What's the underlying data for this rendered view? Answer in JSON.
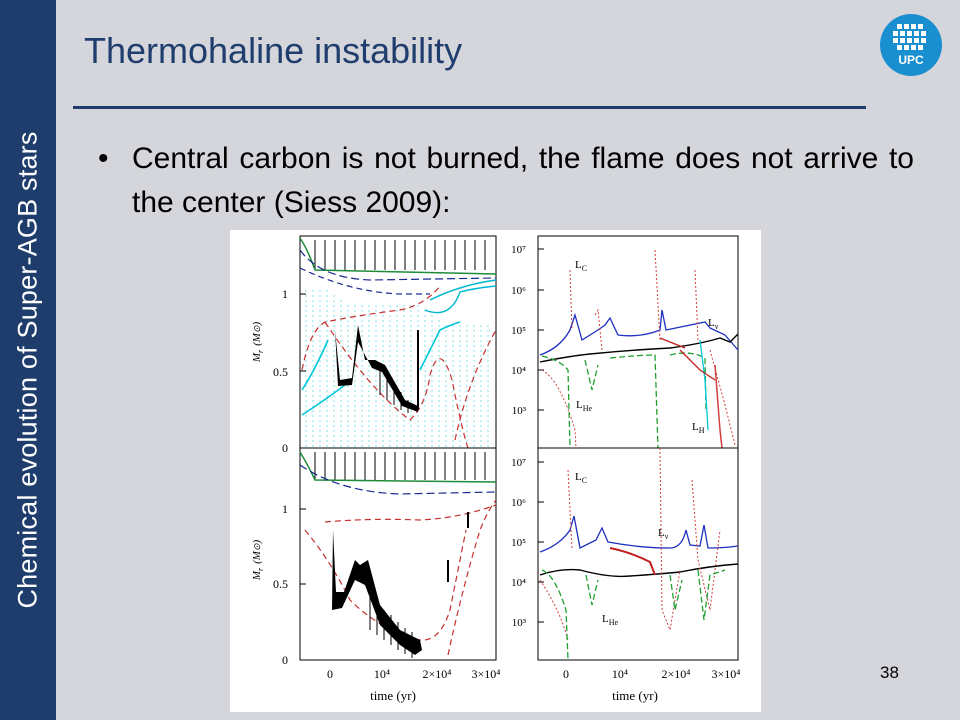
{
  "slide": {
    "sidebar_text": "Chemical evolution of Super-AGB stars",
    "title": "Thermohaline instability",
    "bullet": "Central carbon is not burned, the flame does not arrive to the center (Siess 2009):",
    "page_number": "38",
    "logo": {
      "text": "UPC",
      "icon": "upc-logo-icon"
    },
    "colors": {
      "sidebar": "#1e3d6c",
      "title": "#1f3d6d",
      "background": "#d4d6dc"
    }
  },
  "figure": {
    "left_panels": {
      "ylabel_main": "M",
      "ylabel_sub": "r",
      "ylabel_unit": "(M",
      "ylabel_unit_end": ")",
      "yticks": [
        "0",
        "0.5",
        "1"
      ],
      "xticks": [
        "0",
        "10⁴",
        "2×10⁴",
        "3×10⁴"
      ],
      "xlabel": "time (yr)"
    },
    "right_panels": {
      "yticks": [
        "10³",
        "10⁴",
        "10⁵",
        "10⁶",
        "10⁷"
      ],
      "xticks": [
        "0",
        "10⁴",
        "2×10⁴",
        "3×10⁴"
      ],
      "xlabel": "time (yr)",
      "top_labels": {
        "lc": "C",
        "lnu": "ν",
        "lhe": "He",
        "lh": "H"
      },
      "bottom_labels": {
        "lc": "C",
        "lnu": "ν",
        "lhe": "He"
      },
      "label_letter": "L"
    }
  }
}
